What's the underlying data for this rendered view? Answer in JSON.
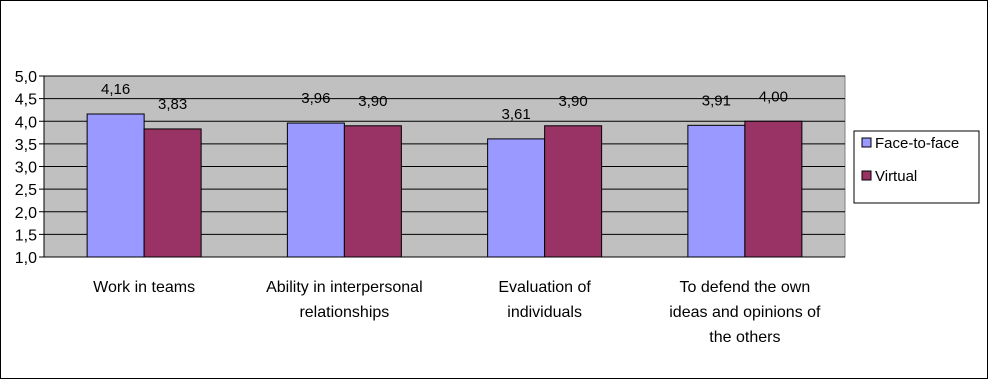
{
  "chart_data": {
    "type": "bar",
    "categories": [
      [
        "Work in teams"
      ],
      [
        "Ability in interpersonal",
        "relationships"
      ],
      [
        "Evaluation of",
        "individuals"
      ],
      [
        "To defend the own",
        "ideas and opinions of",
        "the others"
      ]
    ],
    "series": [
      {
        "name": "Face-to-face",
        "color": "#9999ff",
        "values": [
          4.16,
          3.96,
          3.61,
          3.91
        ],
        "labels": [
          "4,16",
          "3,96",
          "3,61",
          "3,91"
        ]
      },
      {
        "name": "Virtual",
        "color": "#993366",
        "values": [
          3.83,
          3.9,
          3.9,
          4.0
        ],
        "labels": [
          "3,83",
          "3,90",
          "3,90",
          "4,00"
        ]
      }
    ],
    "ylim": [
      1.0,
      5.0
    ],
    "yticks": [
      {
        "value": 1.0,
        "label": "1,0"
      },
      {
        "value": 1.5,
        "label": "1,5"
      },
      {
        "value": 2.0,
        "label": "2,0"
      },
      {
        "value": 2.5,
        "label": "2,5"
      },
      {
        "value": 3.0,
        "label": "3,0"
      },
      {
        "value": 3.5,
        "label": "3,5"
      },
      {
        "value": 4.0,
        "label": "4,0"
      },
      {
        "value": 4.5,
        "label": "4,5"
      },
      {
        "value": 5.0,
        "label": "5,0"
      }
    ],
    "title": "",
    "xlabel": "",
    "ylabel": "",
    "grid": true,
    "plot_background": "#c0c0c0",
    "legend": "right"
  }
}
